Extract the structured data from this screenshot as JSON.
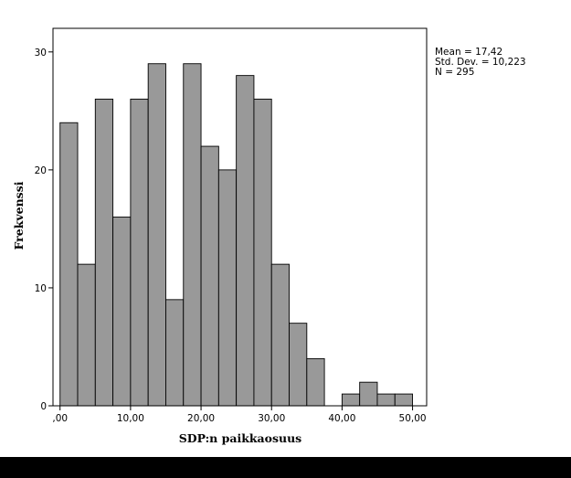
{
  "chart_data": {
    "type": "bar",
    "title": "",
    "xlabel": "SDP:n paikkaosuus",
    "ylabel": "Frekvenssi",
    "xlim": [
      -1,
      52
    ],
    "ylim": [
      0,
      32
    ],
    "x_ticks": [
      0,
      10,
      20,
      30,
      40,
      50
    ],
    "x_tick_labels": [
      ",00",
      "10,00",
      "20,00",
      "30,00",
      "40,00",
      "50,00"
    ],
    "y_ticks": [
      0,
      10,
      20,
      30
    ],
    "y_tick_labels": [
      "0",
      "10",
      "20",
      "30"
    ],
    "bin_width": 2.5,
    "bin_starts": [
      0,
      2.5,
      5,
      7.5,
      10,
      12.5,
      15,
      17.5,
      20,
      22.5,
      25,
      27.5,
      30,
      32.5,
      35,
      37.5,
      40,
      42.5,
      45,
      47.5
    ],
    "values": [
      24,
      12,
      26,
      16,
      26,
      29,
      9,
      29,
      22,
      20,
      28,
      26,
      12,
      7,
      4,
      0,
      1,
      2,
      1,
      1
    ],
    "bar_color": "#999999",
    "grid": false,
    "legend": "none"
  },
  "stats": {
    "mean": "Mean = 17,42",
    "std_dev": "Std. Dev. = 10,223",
    "n": "N = 295"
  }
}
